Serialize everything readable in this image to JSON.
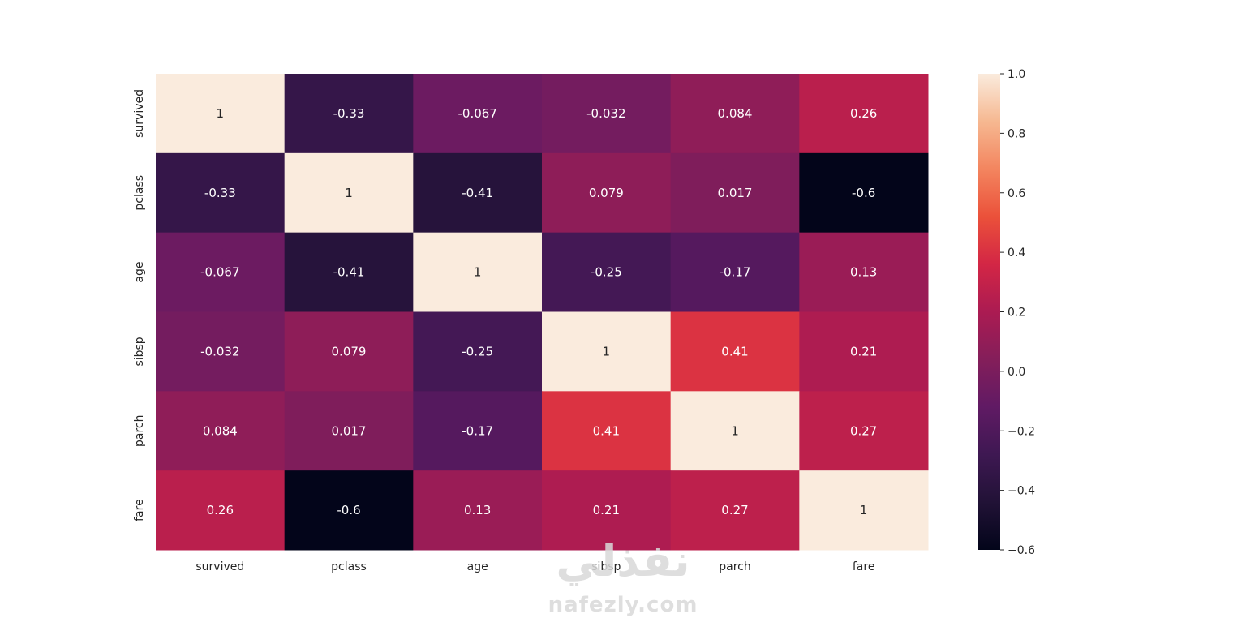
{
  "watermark": {
    "arabic": "نفذلي",
    "latin": "nafezly.com"
  },
  "chart_data": {
    "type": "heatmap",
    "rows": [
      "survived",
      "pclass",
      "age",
      "sibsp",
      "parch",
      "fare"
    ],
    "columns": [
      "survived",
      "pclass",
      "age",
      "sibsp",
      "parch",
      "fare"
    ],
    "values": [
      [
        1,
        -0.33,
        -0.067,
        -0.032,
        0.084,
        0.26
      ],
      [
        -0.33,
        1,
        -0.41,
        0.079,
        0.017,
        -0.6
      ],
      [
        -0.067,
        -0.41,
        1,
        -0.25,
        -0.17,
        0.13
      ],
      [
        -0.032,
        0.079,
        -0.25,
        1,
        0.41,
        0.21
      ],
      [
        0.084,
        0.017,
        -0.17,
        0.41,
        1,
        0.27
      ],
      [
        0.26,
        -0.6,
        0.13,
        0.21,
        0.27,
        1
      ]
    ],
    "labels": [
      [
        "1",
        "-0.33",
        "-0.067",
        "-0.032",
        "0.084",
        "0.26"
      ],
      [
        "-0.33",
        "1",
        "-0.41",
        "0.079",
        "0.017",
        "-0.6"
      ],
      [
        "-0.067",
        "-0.41",
        "1",
        "-0.25",
        "-0.17",
        "0.13"
      ],
      [
        "-0.032",
        "0.079",
        "-0.25",
        "1",
        "0.41",
        "0.21"
      ],
      [
        "0.084",
        "0.017",
        "-0.17",
        "0.41",
        "1",
        "0.27"
      ],
      [
        "0.26",
        "-0.6",
        "0.13",
        "0.21",
        "0.27",
        "1"
      ]
    ],
    "colormap": "rocket",
    "vmin": -0.6,
    "vmax": 1.0,
    "colorbar": {
      "ticks": [
        1.0,
        0.8,
        0.6,
        0.4,
        0.2,
        0.0,
        -0.2,
        -0.4,
        -0.6
      ],
      "tick_labels": [
        "1.0",
        "0.8",
        "0.6",
        "0.4",
        "0.2",
        "0.0",
        "−0.2",
        "−0.4",
        "−0.6"
      ],
      "placement": "right"
    },
    "title": "",
    "xlabel": "",
    "ylabel": ""
  }
}
